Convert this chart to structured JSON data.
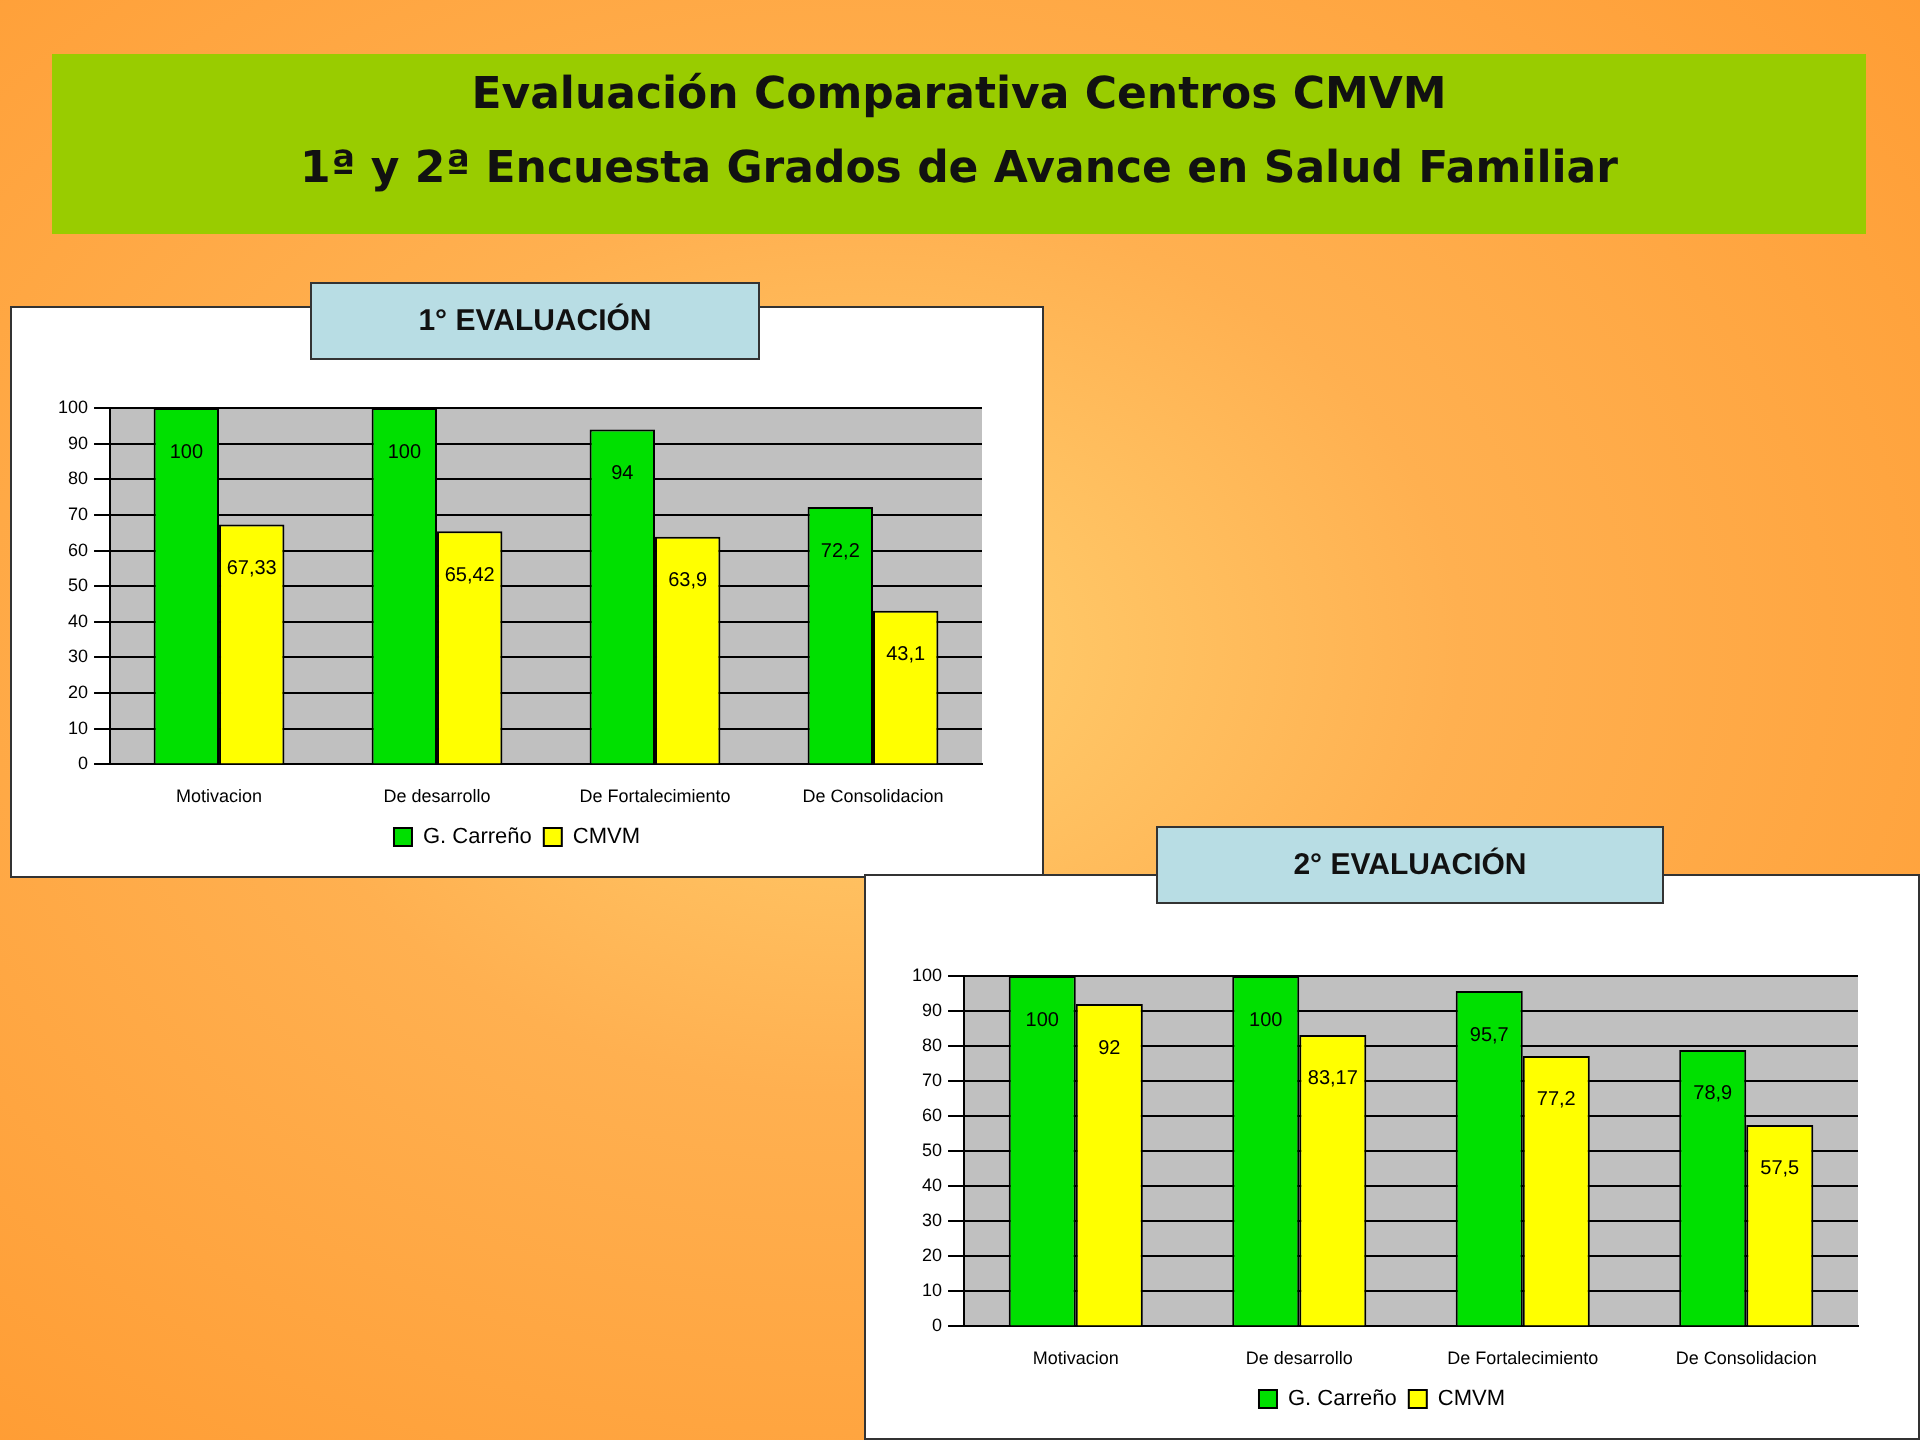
{
  "chart_data": [
    {
      "type": "other",
      "title": "Evaluación Comparativa Centros CMVM",
      "subtitle": "1ª y 2ª Encuesta Grados de Avance en Salud Familiar"
    },
    {
      "type": "bar",
      "title": "1° EVALUACIÓN",
      "categories": [
        "Motivacion",
        "De desarrollo",
        "De Fortalecimiento",
        "De Consolidacion"
      ],
      "series": [
        {
          "name": "G. Carreño",
          "color": "#00e000",
          "values": [
            100,
            100,
            94,
            72.2
          ],
          "value_labels": [
            "100",
            "100",
            "94",
            "72,2"
          ]
        },
        {
          "name": "CMVM",
          "color": "#ffff00",
          "values": [
            67.33,
            65.42,
            63.9,
            43.1
          ],
          "value_labels": [
            "67,33",
            "65,42",
            "63,9",
            "43,1"
          ]
        }
      ],
      "ylim": [
        0,
        100
      ],
      "yticks": [
        0,
        10,
        20,
        30,
        40,
        50,
        60,
        70,
        80,
        90,
        100
      ],
      "grid": "y",
      "legend": "bottom"
    },
    {
      "type": "bar",
      "title": "2° EVALUACIÓN",
      "categories": [
        "Motivacion",
        "De desarrollo",
        "De Fortalecimiento",
        "De Consolidacion"
      ],
      "series": [
        {
          "name": "G. Carreño",
          "color": "#00e000",
          "values": [
            100,
            100,
            95.7,
            78.9
          ],
          "value_labels": [
            "100",
            "100",
            "95,7",
            "78,9"
          ]
        },
        {
          "name": "CMVM",
          "color": "#ffff00",
          "values": [
            92,
            83.17,
            77.2,
            57.5
          ],
          "value_labels": [
            "92",
            "83,17",
            "77,2",
            "57,5"
          ]
        }
      ],
      "ylim": [
        0,
        100
      ],
      "yticks": [
        0,
        10,
        20,
        30,
        40,
        50,
        60,
        70,
        80,
        90,
        100
      ],
      "grid": "y",
      "legend": "bottom"
    }
  ]
}
